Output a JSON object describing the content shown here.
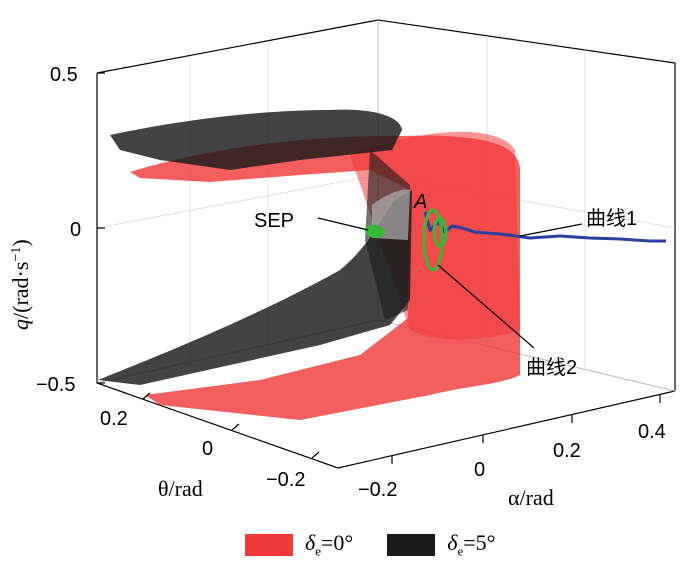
{
  "chart_data": {
    "type": "3d-surface",
    "axes": {
      "q": {
        "label_var": "q",
        "label_unit": "/(rad·s",
        "label_exp": "−1",
        "label_close": ")",
        "ticks": [
          "0.5",
          "0",
          "−0.5"
        ],
        "range": [
          -0.5,
          0.5
        ]
      },
      "theta": {
        "label": "θ/rad",
        "ticks": [
          "0.2",
          "0",
          "−0.2"
        ],
        "range": [
          -0.3,
          0.3
        ]
      },
      "alpha": {
        "label": "α/rad",
        "ticks": [
          "−0.2",
          "0",
          "0.2",
          "0.4"
        ],
        "range": [
          -0.2,
          0.45
        ]
      }
    },
    "series": [
      {
        "name": "δe=0°",
        "kind": "surface",
        "color": "#f03a3a"
      },
      {
        "name": "δe=5°",
        "kind": "surface",
        "color": "#1a1a1a"
      }
    ],
    "annotations": {
      "sep": "SEP",
      "point_a": "A",
      "curve1": "曲线1",
      "curve2": "曲线2"
    },
    "curves": [
      {
        "name": "曲线1",
        "color": "#2a3f9e"
      },
      {
        "name": "曲线2",
        "color": "#33bb33"
      }
    ],
    "legend": [
      {
        "sym": "δ",
        "sub": "e",
        "rest": "=0°",
        "color": "#f03a3a"
      },
      {
        "sym": "δ",
        "sub": "e",
        "rest": "=5°",
        "color": "#1a1a1a"
      }
    ]
  }
}
